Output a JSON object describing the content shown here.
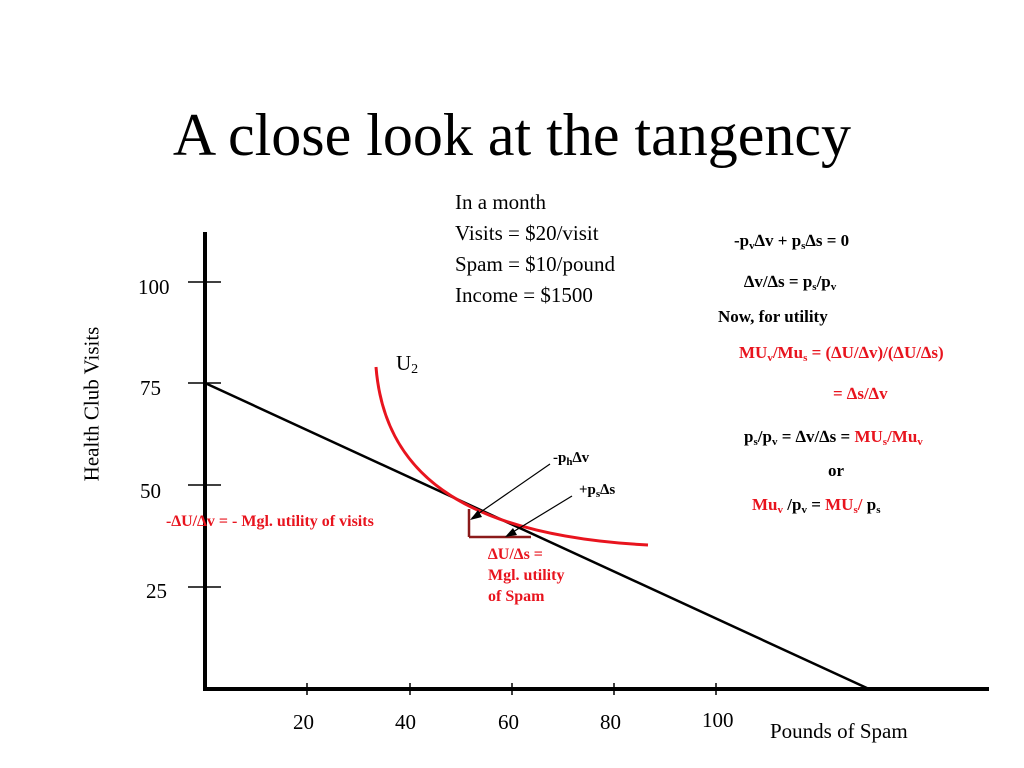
{
  "title": "A close look at the tangency",
  "given": {
    "line1": "In a month",
    "line2": "Visits = $20/visit",
    "line3": "Spam = $10/pound",
    "line4": "Income = $1500"
  },
  "axes": {
    "ylabel": "Health Club Visits",
    "xlabel": "Pounds of Spam",
    "yticks": [
      "100",
      "75",
      "50",
      "25"
    ],
    "xticks": [
      "20",
      "40",
      "60",
      "80",
      "100"
    ]
  },
  "curve_label": {
    "base": "U",
    "sub": "2"
  },
  "annotations": {
    "neg_ph_dv": {
      "a": "-p",
      "sub": "h",
      "b": "∆v"
    },
    "pos_ps_ds": {
      "a": "+p",
      "sub": "s",
      "b": "∆s"
    },
    "mgl_visits": "-∆U/∆v = - Mgl. utility of visits",
    "mgl_spam_1": "∆U/∆s =",
    "mgl_spam_2": "Mgl. utility",
    "mgl_spam_3": "of Spam"
  },
  "equations": {
    "e1": {
      "a": "-p",
      "s1": "v",
      "b": "∆v + p",
      "s2": "s",
      "c": "∆s = 0"
    },
    "e2": {
      "a": "∆v/∆s = p",
      "s1": "s",
      "b": "/p",
      "s2": "v"
    },
    "e3": "Now, for utility",
    "e4": {
      "a": "MU",
      "s1": "v",
      "b": "/Mu",
      "s2": "s",
      "c": " = (∆U/∆v)/(∆U/∆s)"
    },
    "e5": "= ∆s/∆v",
    "e6": {
      "a": "p",
      "s1": "s",
      "b": "/p",
      "s2": "v",
      "c": " = ∆v/∆s = ",
      "d": "MU",
      "s3": "s",
      "e": "/Mu",
      "s4": "v"
    },
    "e7": "or",
    "e8": {
      "a": "Mu",
      "s1": "v",
      "b": " /p",
      "s2": "v",
      "c": " = ",
      "d": "MU",
      "s3": "s",
      "e": "/",
      "f": " p",
      "s4": "s"
    }
  },
  "colors": {
    "accent": "#e8141e",
    "triangle": "#8b1a1a",
    "line": "#000000"
  }
}
